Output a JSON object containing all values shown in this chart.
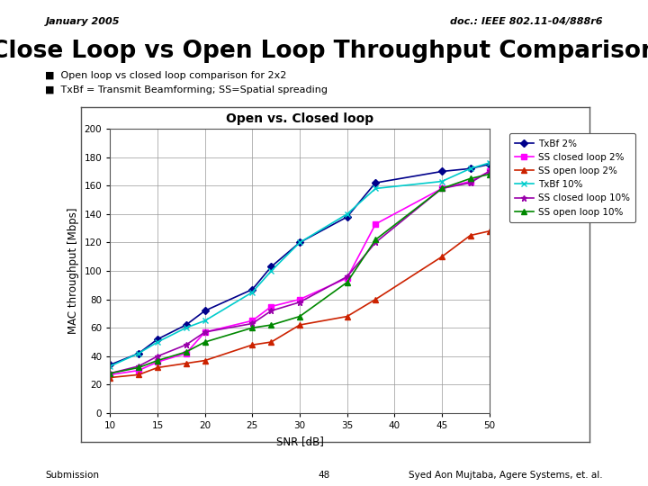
{
  "header_left": "January 2005",
  "header_right": "doc.: IEEE 802.11-04/888r6",
  "title_main": "Close Loop vs Open Loop Throughput Comparison",
  "bullet1": "Open loop vs closed loop comparison for 2x2",
  "bullet2": "TxBf = Transmit Beamforming; SS=Spatial spreading",
  "chart_title": "Open vs. Closed loop",
  "xlabel": "SNR [dB]",
  "ylabel": "MAC throughput [Mbps]",
  "footer_left": "Submission",
  "footer_center": "48",
  "footer_right": "Syed Aon Mujtaba, Agere Systems, et. al.",
  "xlim": [
    10,
    50
  ],
  "ylim": [
    0,
    200
  ],
  "xticks": [
    10,
    15,
    20,
    25,
    30,
    35,
    40,
    45,
    50
  ],
  "yticks": [
    0,
    20,
    40,
    60,
    80,
    100,
    120,
    140,
    160,
    180,
    200
  ],
  "series": [
    {
      "label": "TxBf 2%",
      "color": "#00008B",
      "marker": "D",
      "markersize": 4,
      "linewidth": 1.2,
      "snr": [
        10,
        13,
        15,
        18,
        20,
        25,
        27,
        30,
        35,
        38,
        45,
        48,
        50
      ],
      "tput": [
        34,
        42,
        52,
        62,
        72,
        87,
        103,
        120,
        138,
        162,
        170,
        172,
        175
      ]
    },
    {
      "label": "SS closed loop 2%",
      "color": "#FF00FF",
      "marker": "s",
      "markersize": 4,
      "linewidth": 1.2,
      "snr": [
        10,
        13,
        15,
        18,
        20,
        25,
        27,
        30,
        35,
        38,
        45,
        48,
        50
      ],
      "tput": [
        27,
        30,
        36,
        42,
        57,
        65,
        75,
        80,
        95,
        133,
        158,
        163,
        170
      ]
    },
    {
      "label": "SS open loop 2%",
      "color": "#CC2200",
      "marker": "^",
      "markersize": 4,
      "linewidth": 1.2,
      "snr": [
        10,
        13,
        15,
        18,
        20,
        25,
        27,
        30,
        35,
        38,
        45,
        48,
        50
      ],
      "tput": [
        25,
        27,
        32,
        35,
        37,
        48,
        50,
        62,
        68,
        80,
        110,
        125,
        128
      ]
    },
    {
      "label": "TxBf 10%",
      "color": "#00CCCC",
      "marker": "x",
      "markersize": 5,
      "linewidth": 1.2,
      "snr": [
        10,
        13,
        15,
        18,
        20,
        25,
        27,
        30,
        35,
        38,
        45,
        48,
        50
      ],
      "tput": [
        33,
        42,
        50,
        60,
        65,
        85,
        100,
        120,
        140,
        158,
        163,
        172,
        176
      ]
    },
    {
      "label": "SS closed loop 10%",
      "color": "#9900AA",
      "marker": "*",
      "markersize": 5,
      "linewidth": 1.2,
      "snr": [
        10,
        13,
        15,
        18,
        20,
        25,
        27,
        30,
        35,
        38,
        45,
        48,
        50
      ],
      "tput": [
        28,
        33,
        40,
        48,
        57,
        63,
        72,
        78,
        96,
        120,
        158,
        162,
        170
      ]
    },
    {
      "label": "SS open loop 10%",
      "color": "#008800",
      "marker": "^",
      "markersize": 4,
      "linewidth": 1.2,
      "snr": [
        10,
        13,
        15,
        18,
        20,
        25,
        27,
        30,
        35,
        38,
        45,
        48,
        50
      ],
      "tput": [
        28,
        32,
        37,
        43,
        50,
        60,
        62,
        68,
        92,
        122,
        158,
        165,
        168
      ]
    }
  ],
  "bg_color": "#FFFFFF",
  "chart_bg": "#FFFFFF",
  "grid_color": "#999999",
  "chart_border_color": "#888888"
}
